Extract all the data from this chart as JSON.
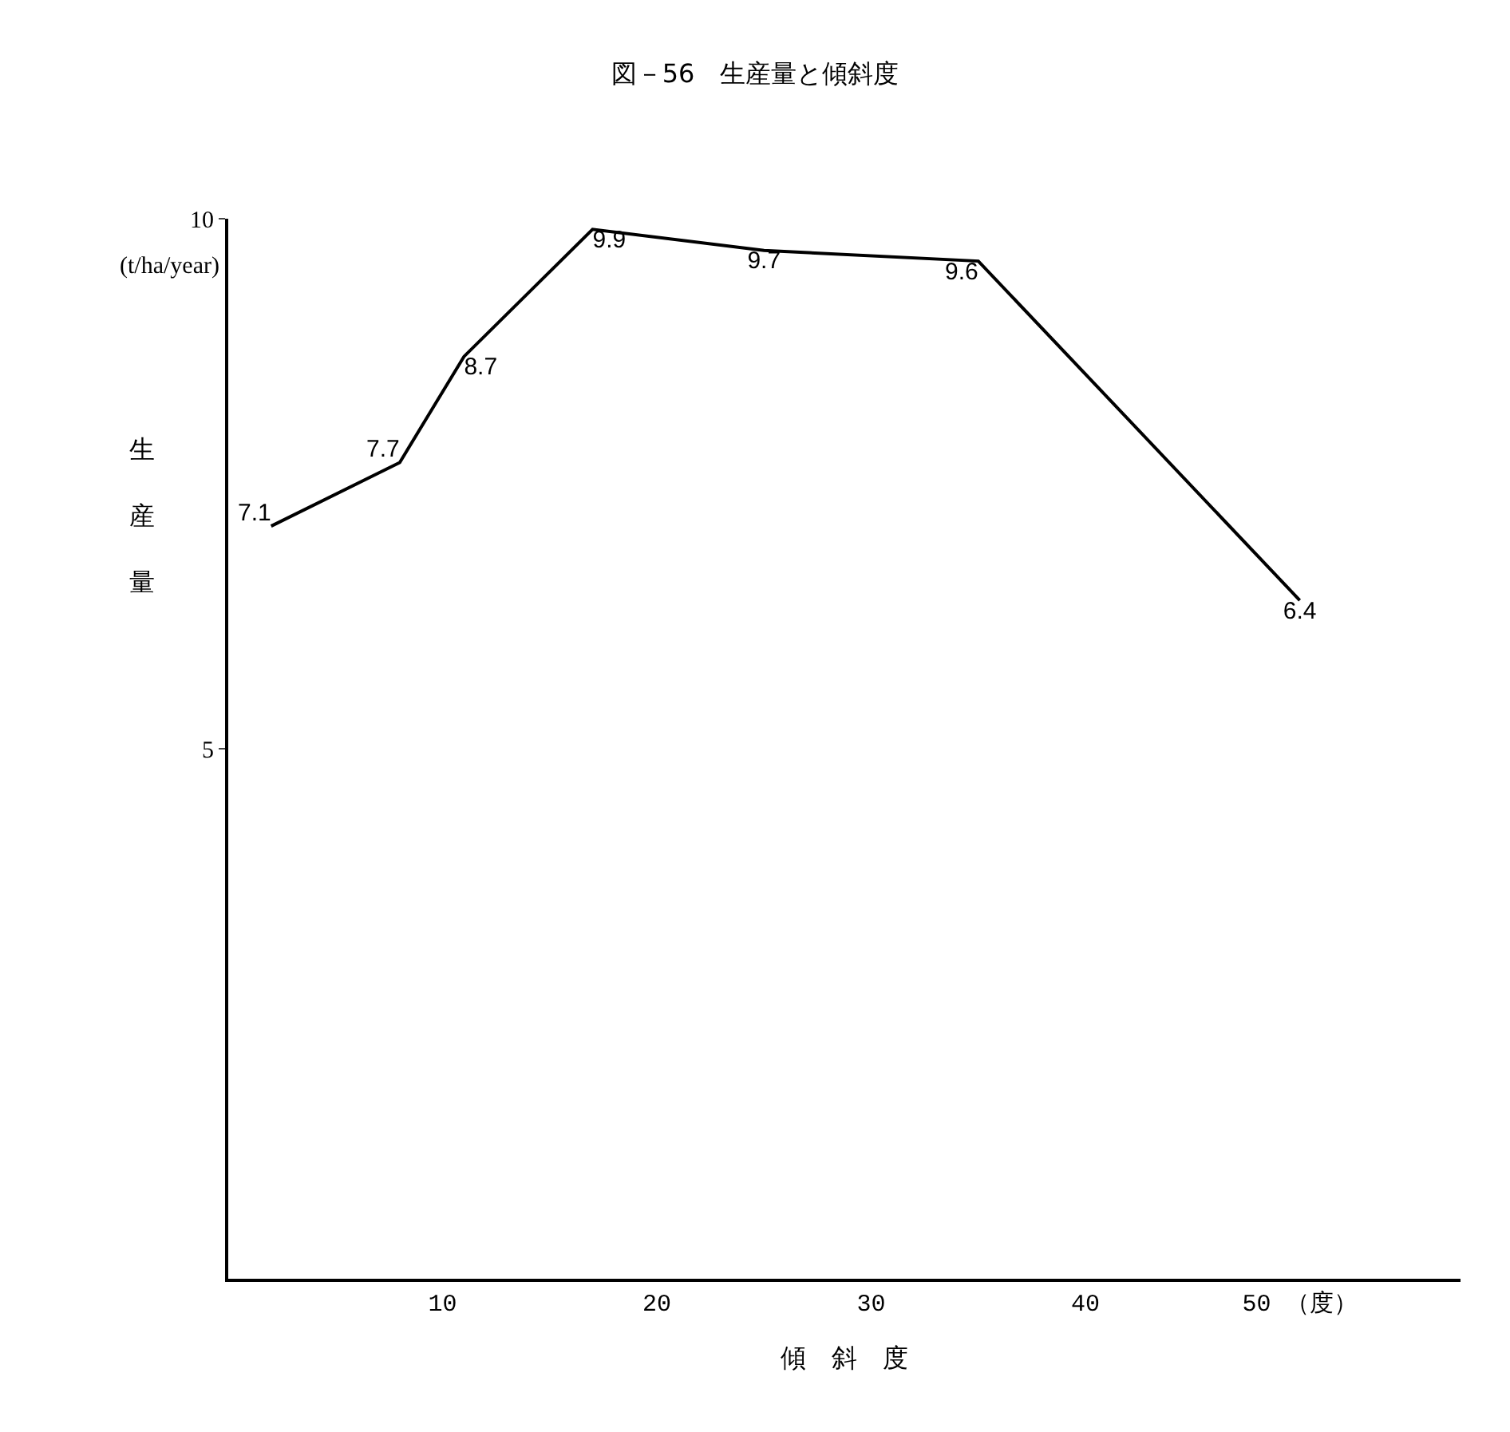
{
  "chart_data": {
    "type": "line",
    "title": "図－56　生産量と傾斜度",
    "xlabel": "傾　斜　度",
    "ylabel": "生産量",
    "annotations": [
      "(t/ha/year)"
    ],
    "x": [
      2,
      8,
      11,
      17,
      25,
      35,
      50
    ],
    "series": [
      {
        "color": "#000000",
        "values": [
          7.1,
          7.7,
          8.7,
          9.9,
          9.7,
          9.6,
          6.4
        ]
      }
    ],
    "data_labels": true,
    "xlim": [
      0,
      57.5
    ],
    "ylim": [
      0,
      10
    ],
    "xticks": [
      10,
      20,
      30,
      40,
      {
        "value": 50,
        "label": "50 （度）"
      }
    ],
    "yticks": [
      5,
      10
    ],
    "marker": "none",
    "line_style": "solid"
  }
}
